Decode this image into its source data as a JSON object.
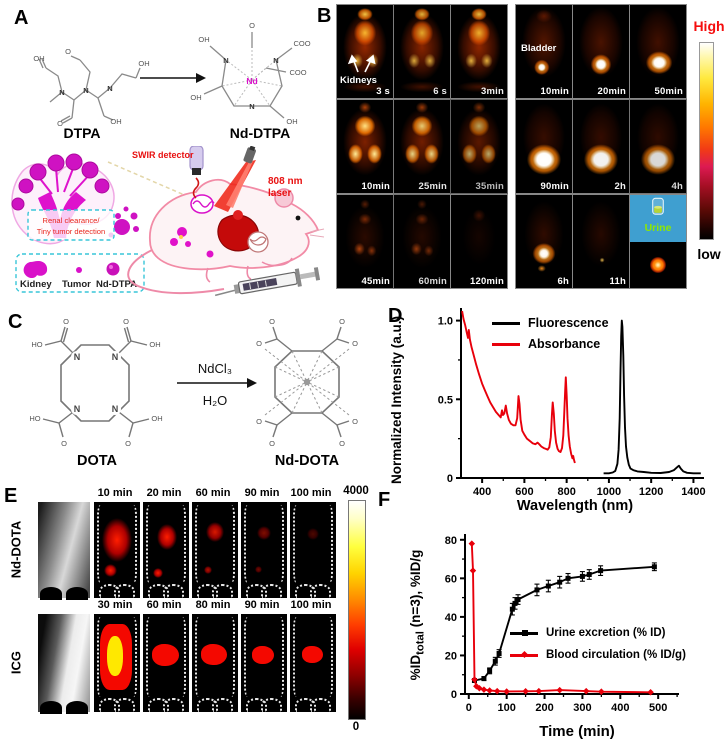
{
  "figure": {
    "panel_labels": {
      "a": "A",
      "b": "B",
      "c": "C",
      "d": "D",
      "e": "E",
      "f": "F"
    }
  },
  "panel_a": {
    "dtpa_label": "DTPA",
    "nd_dtpa_label": "Nd-DTPA",
    "atoms": {
      "n": "N",
      "nd": "Nd",
      "oh": "OH",
      "ho": "HO",
      "o": "O",
      "coo": "COO"
    },
    "swir_label": "SWIR detector",
    "laser_label": "808 nm laser",
    "box_line1": "Renal clearance/",
    "box_line2": "Tiny tumor detection",
    "legend_items": [
      "Kidney",
      "Tumor",
      "Nd-DTPA"
    ],
    "accent_magenta": "#d911c9",
    "accent_red": "#e81010"
  },
  "panel_b": {
    "row1": [
      "3 s",
      "6 s",
      "3min",
      "10min",
      "20min",
      "50min"
    ],
    "row2": [
      "10min",
      "25min",
      "35min",
      "90min",
      "2h",
      "4h"
    ],
    "row3": [
      "45min",
      "60min",
      "120min",
      "6h",
      "11h"
    ],
    "kidneys_label": "Kidneys",
    "bladder_label": "Bladder",
    "urine_label": "Urine",
    "scale_high": "High",
    "scale_low": "low"
  },
  "panel_c": {
    "dota_label": "DOTA",
    "nd_dota_label": "Nd-DOTA",
    "reagent": "NdCl₃",
    "solvent": "H₂O",
    "atoms": {
      "n": "N",
      "oh": "OH",
      "ho": "HO",
      "o": "O"
    }
  },
  "panel_e": {
    "row1_label": "Nd-DOTA",
    "row2_label": "ICG",
    "row1_times": [
      "10 min",
      "20 min",
      "60 min",
      "90 min",
      "100 min"
    ],
    "row2_times": [
      "30 min",
      "60 min",
      "80 min",
      "90 min",
      "100 min"
    ],
    "scale_max": "4000",
    "scale_min": "0"
  },
  "chart_data": [
    {
      "type": "line",
      "title": "",
      "xlabel": "Wavelength (nm)",
      "ylabel": "Normalized Intensity (a.u.)",
      "xlim": [
        300,
        1450
      ],
      "ylim": [
        0,
        1.08
      ],
      "xticks": [
        [
          400,
          "400"
        ],
        [
          600,
          "600"
        ],
        [
          800,
          "800"
        ],
        [
          1000,
          "1000"
        ],
        [
          1200,
          "1200"
        ],
        [
          1400,
          "1400"
        ]
      ],
      "yticks": [
        [
          0,
          "0"
        ],
        [
          0.5,
          "0.5"
        ],
        [
          1,
          "1.0"
        ]
      ],
      "xminor": [
        500,
        700,
        900,
        1100,
        1300
      ],
      "yminor": [
        0.25,
        0.75
      ],
      "grid": false,
      "legend_position": "inside top-left",
      "series": [
        {
          "name": "Fluorescence",
          "color": "#000000",
          "points": [
            [
              975,
              0.03
            ],
            [
              1000,
              0.03
            ],
            [
              1018,
              0.035
            ],
            [
              1030,
              0.045
            ],
            [
              1040,
              0.09
            ],
            [
              1046,
              0.18
            ],
            [
              1051,
              0.38
            ],
            [
              1055,
              0.68
            ],
            [
              1058,
              0.9
            ],
            [
              1061,
              1.0
            ],
            [
              1064,
              0.96
            ],
            [
              1068,
              0.78
            ],
            [
              1072,
              0.52
            ],
            [
              1076,
              0.32
            ],
            [
              1081,
              0.2
            ],
            [
              1087,
              0.13
            ],
            [
              1094,
              0.085
            ],
            [
              1102,
              0.06
            ],
            [
              1115,
              0.05
            ],
            [
              1135,
              0.042
            ],
            [
              1165,
              0.038
            ],
            [
              1200,
              0.033
            ],
            [
              1245,
              0.032
            ],
            [
              1285,
              0.038
            ],
            [
              1308,
              0.05
            ],
            [
              1322,
              0.068
            ],
            [
              1331,
              0.078
            ],
            [
              1340,
              0.06
            ],
            [
              1352,
              0.042
            ],
            [
              1370,
              0.033
            ],
            [
              1400,
              0.03
            ],
            [
              1435,
              0.03
            ]
          ]
        },
        {
          "name": "Absorbance",
          "color": "#e8000b",
          "points": [
            [
              305,
              1.06
            ],
            [
              312,
              1.01
            ],
            [
              320,
              0.97
            ],
            [
              328,
              0.92
            ],
            [
              333,
              0.89
            ],
            [
              337,
              0.94
            ],
            [
              342,
              0.88
            ],
            [
              350,
              0.83
            ],
            [
              360,
              0.78
            ],
            [
              372,
              0.72
            ],
            [
              385,
              0.66
            ],
            [
              400,
              0.6
            ],
            [
              412,
              0.56
            ],
            [
              425,
              0.52
            ],
            [
              438,
              0.48
            ],
            [
              452,
              0.45
            ],
            [
              465,
              0.42
            ],
            [
              478,
              0.4
            ],
            [
              488,
              0.385
            ],
            [
              494,
              0.43
            ],
            [
              499,
              0.4
            ],
            [
              505,
              0.41
            ],
            [
              512,
              0.46
            ],
            [
              518,
              0.41
            ],
            [
              526,
              0.37
            ],
            [
              536,
              0.345
            ],
            [
              548,
              0.335
            ],
            [
              558,
              0.335
            ],
            [
              566,
              0.38
            ],
            [
              572,
              0.52
            ],
            [
              577,
              0.47
            ],
            [
              582,
              0.37
            ],
            [
              590,
              0.3
            ],
            [
              600,
              0.275
            ],
            [
              612,
              0.25
            ],
            [
              626,
              0.235
            ],
            [
              640,
              0.22
            ],
            [
              652,
              0.215
            ],
            [
              662,
              0.225
            ],
            [
              670,
              0.215
            ],
            [
              680,
              0.2
            ],
            [
              692,
              0.19
            ],
            [
              702,
              0.185
            ],
            [
              710,
              0.18
            ],
            [
              718,
              0.195
            ],
            [
              725,
              0.26
            ],
            [
              730,
              0.4
            ],
            [
              734,
              0.48
            ],
            [
              739,
              0.41
            ],
            [
              744,
              0.3
            ],
            [
              750,
              0.225
            ],
            [
              757,
              0.185
            ],
            [
              764,
              0.17
            ],
            [
              771,
              0.165
            ],
            [
              778,
              0.19
            ],
            [
              784,
              0.27
            ],
            [
              789,
              0.42
            ],
            [
              793,
              0.56
            ],
            [
              796,
              0.64
            ],
            [
              800,
              0.52
            ],
            [
              804,
              0.38
            ],
            [
              809,
              0.27
            ],
            [
              815,
              0.2
            ],
            [
              821,
              0.155
            ],
            [
              827,
              0.125
            ],
            [
              831,
              0.14
            ],
            [
              835,
              0.115
            ],
            [
              839,
              0.095
            ]
          ]
        }
      ]
    },
    {
      "type": "line",
      "title": "",
      "xlabel": "Time (min)",
      "ylabel": "%ID_total (n=3),  %ID/g",
      "ylabel_parts": {
        "base": "%ID",
        "sub": "total",
        "rest": " (n=3),  %ID/g"
      },
      "xlim": [
        -10,
        555
      ],
      "ylim": [
        0,
        83
      ],
      "xticks": [
        [
          0,
          "0"
        ],
        [
          100,
          "100"
        ],
        [
          200,
          "200"
        ],
        [
          300,
          "300"
        ],
        [
          400,
          "400"
        ],
        [
          500,
          "500"
        ]
      ],
      "yticks": [
        [
          0,
          "0"
        ],
        [
          20,
          "20"
        ],
        [
          40,
          "40"
        ],
        [
          60,
          "60"
        ],
        [
          80,
          "80"
        ]
      ],
      "xminor": [
        50,
        150,
        250,
        350,
        450,
        550
      ],
      "yminor": [
        10,
        30,
        50,
        70
      ],
      "grid": false,
      "legend_position": "inside middle-right",
      "series": [
        {
          "name": "Urine excretion (% ID)",
          "color": "#000000",
          "marker": "square",
          "points": [
            [
              15,
              7
            ],
            [
              40,
              8
            ],
            [
              55,
              12
            ],
            [
              70,
              17
            ],
            [
              80,
              21
            ],
            [
              115,
              44
            ],
            [
              122,
              47
            ],
            [
              130,
              49
            ],
            [
              180,
              54
            ],
            [
              210,
              56
            ],
            [
              240,
              58
            ],
            [
              262,
              60
            ],
            [
              300,
              61
            ],
            [
              318,
              62
            ],
            [
              348,
              64
            ],
            [
              490,
              66
            ]
          ],
          "errors": [
            1,
            1,
            1.5,
            2,
            2,
            3,
            3,
            2.5,
            3,
            3,
            3,
            2.5,
            2.5,
            2.5,
            2.5,
            2
          ]
        },
        {
          "name": "Blood circulation (% ID/g)",
          "color": "#e8000b",
          "marker": "diamond",
          "points": [
            [
              8,
              78
            ],
            [
              11,
              64
            ],
            [
              15,
              7.5
            ],
            [
              20,
              4
            ],
            [
              28,
              3
            ],
            [
              40,
              2.3
            ],
            [
              55,
              1.8
            ],
            [
              75,
              1.5
            ],
            [
              100,
              1.3
            ],
            [
              150,
              1.4
            ],
            [
              185,
              1.5
            ],
            [
              240,
              2
            ],
            [
              310,
              1.5
            ],
            [
              350,
              1.2
            ],
            [
              480,
              0.9
            ]
          ]
        }
      ]
    }
  ]
}
